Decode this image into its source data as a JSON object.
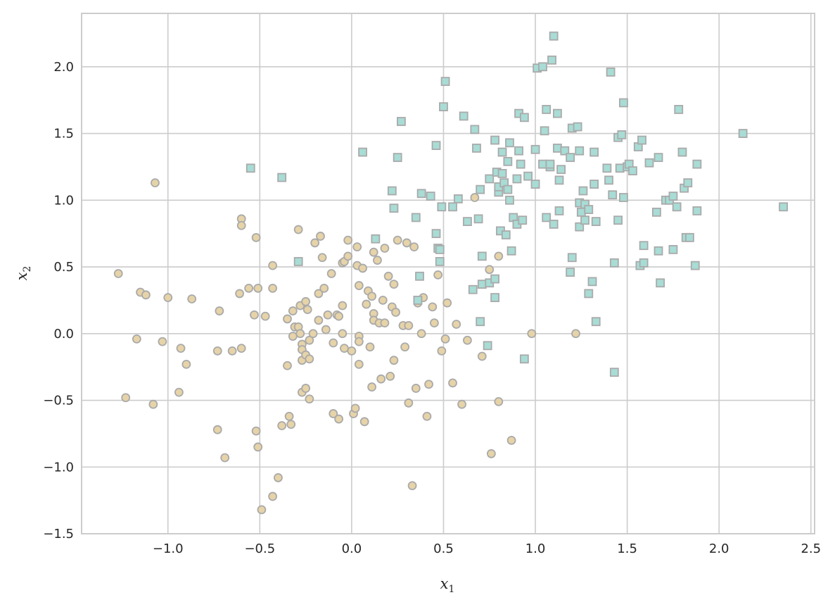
{
  "chart_data": {
    "type": "scatter",
    "title": "",
    "xlabel": "x_1",
    "ylabel": "x_2",
    "xlim": [
      -1.47,
      2.52
    ],
    "ylim": [
      -1.5,
      2.4
    ],
    "xticks": [
      -1.0,
      -0.5,
      0.0,
      0.5,
      1.0,
      1.5,
      2.0,
      2.5
    ],
    "yticks": [
      -1.5,
      -1.0,
      -0.5,
      0.0,
      0.5,
      1.0,
      1.5,
      2.0
    ],
    "xtick_labels": [
      "−1.0",
      "−0.5",
      "0.0",
      "0.5",
      "1.0",
      "1.5",
      "2.0",
      "2.5"
    ],
    "ytick_labels": [
      "−1.5",
      "−1.0",
      "−0.5",
      "0.0",
      "0.5",
      "1.0",
      "1.5",
      "2.0"
    ],
    "grid": true,
    "style": {
      "background": "#ffffff",
      "grid_color": "#cccccc",
      "spine_color": "#cccccc"
    },
    "series": [
      {
        "marker": "circle",
        "color": "#e6d3a8",
        "edge_color": "#aaaaaa",
        "points": [
          [
            -1.27,
            0.45
          ],
          [
            -1.23,
            -0.48
          ],
          [
            -1.17,
            -0.04
          ],
          [
            -1.15,
            0.31
          ],
          [
            -1.12,
            0.29
          ],
          [
            -1.08,
            -0.53
          ],
          [
            -1.07,
            1.13
          ],
          [
            -1.03,
            -0.06
          ],
          [
            -1.0,
            0.27
          ],
          [
            -0.94,
            -0.44
          ],
          [
            -0.93,
            -0.11
          ],
          [
            -0.9,
            -0.23
          ],
          [
            -0.87,
            0.26
          ],
          [
            -0.73,
            -0.72
          ],
          [
            -0.73,
            -0.13
          ],
          [
            -0.72,
            0.17
          ],
          [
            -0.69,
            -0.93
          ],
          [
            -0.65,
            -0.13
          ],
          [
            -0.6,
            0.86
          ],
          [
            -0.6,
            0.81
          ],
          [
            -0.61,
            0.3
          ],
          [
            -0.6,
            -0.11
          ],
          [
            -0.56,
            0.34
          ],
          [
            -0.53,
            0.14
          ],
          [
            -0.52,
            0.72
          ],
          [
            -0.51,
            0.34
          ],
          [
            -0.52,
            -0.73
          ],
          [
            -0.51,
            -0.85
          ],
          [
            -0.47,
            0.13
          ],
          [
            -0.49,
            -1.32
          ],
          [
            -0.43,
            0.51
          ],
          [
            -0.43,
            0.34
          ],
          [
            -0.43,
            -1.22
          ],
          [
            -0.4,
            -1.08
          ],
          [
            -0.38,
            -0.69
          ],
          [
            -0.35,
            0.11
          ],
          [
            -0.35,
            -0.24
          ],
          [
            -0.34,
            -0.62
          ],
          [
            -0.33,
            -0.68
          ],
          [
            -0.32,
            0.17
          ],
          [
            -0.32,
            -0.02
          ],
          [
            -0.31,
            0.05
          ],
          [
            -0.29,
            0.78
          ],
          [
            -0.29,
            0.05
          ],
          [
            -0.28,
            0.21
          ],
          [
            -0.28,
            0.0
          ],
          [
            -0.27,
            -0.08
          ],
          [
            -0.27,
            -0.12
          ],
          [
            -0.27,
            -0.2
          ],
          [
            -0.27,
            -0.44
          ],
          [
            -0.25,
            0.24
          ],
          [
            -0.25,
            -0.16
          ],
          [
            -0.25,
            -0.41
          ],
          [
            -0.24,
            0.18
          ],
          [
            -0.23,
            -0.05
          ],
          [
            -0.23,
            -0.19
          ],
          [
            -0.23,
            -0.49
          ],
          [
            -0.21,
            0.0
          ],
          [
            -0.2,
            0.68
          ],
          [
            -0.17,
            0.73
          ],
          [
            -0.18,
            0.3
          ],
          [
            -0.18,
            0.1
          ],
          [
            -0.16,
            0.57
          ],
          [
            -0.15,
            0.34
          ],
          [
            -0.14,
            0.03
          ],
          [
            -0.13,
            0.14
          ],
          [
            -0.11,
            0.45
          ],
          [
            -0.1,
            -0.07
          ],
          [
            -0.1,
            -0.6
          ],
          [
            -0.08,
            0.14
          ],
          [
            -0.07,
            0.13
          ],
          [
            -0.07,
            -0.64
          ],
          [
            -0.05,
            0.53
          ],
          [
            -0.04,
            0.54
          ],
          [
            -0.05,
            0.21
          ],
          [
            -0.05,
            0.0
          ],
          [
            -0.04,
            -0.11
          ],
          [
            -0.02,
            0.58
          ],
          [
            -0.02,
            0.7
          ],
          [
            0.0,
            -0.13
          ],
          [
            0.01,
            -0.6
          ],
          [
            0.02,
            -0.56
          ],
          [
            0.03,
            0.65
          ],
          [
            0.03,
            0.51
          ],
          [
            0.04,
            0.36
          ],
          [
            0.04,
            -0.02
          ],
          [
            0.04,
            -0.06
          ],
          [
            0.04,
            -0.23
          ],
          [
            0.06,
            0.49
          ],
          [
            0.07,
            -0.66
          ],
          [
            0.08,
            0.22
          ],
          [
            0.09,
            0.32
          ],
          [
            0.1,
            -0.1
          ],
          [
            0.11,
            0.28
          ],
          [
            0.11,
            -0.4
          ],
          [
            0.12,
            0.61
          ],
          [
            0.12,
            0.15
          ],
          [
            0.12,
            0.1
          ],
          [
            0.14,
            0.55
          ],
          [
            0.15,
            0.08
          ],
          [
            0.16,
            -0.34
          ],
          [
            0.17,
            0.25
          ],
          [
            0.18,
            0.08
          ],
          [
            0.18,
            0.64
          ],
          [
            0.2,
            0.43
          ],
          [
            0.21,
            -0.32
          ],
          [
            0.22,
            0.2
          ],
          [
            0.23,
            0.37
          ],
          [
            0.23,
            -0.2
          ],
          [
            0.24,
            0.16
          ],
          [
            0.25,
            0.7
          ],
          [
            0.28,
            0.06
          ],
          [
            0.29,
            -0.1
          ],
          [
            0.3,
            0.68
          ],
          [
            0.31,
            0.06
          ],
          [
            0.31,
            -0.52
          ],
          [
            0.33,
            -1.14
          ],
          [
            0.34,
            0.65
          ],
          [
            0.35,
            -0.41
          ],
          [
            0.36,
            0.23
          ],
          [
            0.38,
            0.0
          ],
          [
            0.39,
            0.27
          ],
          [
            0.41,
            -0.62
          ],
          [
            0.42,
            -0.38
          ],
          [
            0.44,
            0.2
          ],
          [
            0.45,
            0.08
          ],
          [
            0.47,
            0.44
          ],
          [
            0.49,
            -0.13
          ],
          [
            0.51,
            -0.04
          ],
          [
            0.52,
            0.23
          ],
          [
            0.55,
            -0.37
          ],
          [
            0.57,
            0.07
          ],
          [
            0.6,
            -0.53
          ],
          [
            0.63,
            -0.05
          ],
          [
            0.67,
            1.02
          ],
          [
            0.71,
            -0.17
          ],
          [
            0.75,
            0.48
          ],
          [
            0.76,
            -0.9
          ],
          [
            0.8,
            -0.51
          ],
          [
            0.8,
            0.58
          ],
          [
            0.87,
            -0.8
          ],
          [
            0.98,
            0.0
          ],
          [
            1.22,
            0.0
          ]
        ]
      },
      {
        "marker": "square",
        "color": "#a8dcd5",
        "edge_color": "#aaaaaa",
        "points": [
          [
            -0.55,
            1.24
          ],
          [
            -0.38,
            1.17
          ],
          [
            -0.29,
            0.54
          ],
          [
            0.06,
            1.36
          ],
          [
            0.13,
            0.71
          ],
          [
            0.22,
            1.07
          ],
          [
            0.23,
            0.94
          ],
          [
            0.25,
            1.32
          ],
          [
            0.27,
            1.59
          ],
          [
            0.35,
            0.87
          ],
          [
            0.36,
            0.25
          ],
          [
            0.37,
            0.43
          ],
          [
            0.38,
            1.05
          ],
          [
            0.43,
            1.03
          ],
          [
            0.46,
            0.75
          ],
          [
            0.46,
            1.41
          ],
          [
            0.47,
            0.64
          ],
          [
            0.48,
            0.54
          ],
          [
            0.48,
            0.63
          ],
          [
            0.49,
            0.95
          ],
          [
            0.5,
            1.7
          ],
          [
            0.51,
            1.89
          ],
          [
            0.55,
            0.95
          ],
          [
            0.58,
            1.01
          ],
          [
            0.61,
            1.63
          ],
          [
            0.63,
            0.84
          ],
          [
            0.66,
            0.33
          ],
          [
            0.67,
            1.53
          ],
          [
            0.68,
            1.39
          ],
          [
            0.69,
            0.86
          ],
          [
            0.7,
            1.08
          ],
          [
            0.7,
            0.09
          ],
          [
            0.71,
            0.58
          ],
          [
            0.71,
            0.37
          ],
          [
            0.74,
            -0.09
          ],
          [
            0.75,
            1.16
          ],
          [
            0.75,
            0.38
          ],
          [
            0.78,
            1.45
          ],
          [
            0.78,
            0.41
          ],
          [
            0.78,
            0.27
          ],
          [
            0.79,
            1.21
          ],
          [
            0.8,
            1.06
          ],
          [
            0.8,
            1.1
          ],
          [
            0.81,
            0.77
          ],
          [
            0.82,
            1.36
          ],
          [
            0.82,
            1.2
          ],
          [
            0.83,
            1.13
          ],
          [
            0.84,
            0.74
          ],
          [
            0.85,
            1.29
          ],
          [
            0.85,
            1.08
          ],
          [
            0.86,
            1.43
          ],
          [
            0.86,
            1.0
          ],
          [
            0.87,
            0.62
          ],
          [
            0.88,
            0.87
          ],
          [
            0.9,
            0.82
          ],
          [
            0.9,
            1.16
          ],
          [
            0.91,
            1.65
          ],
          [
            0.91,
            1.37
          ],
          [
            0.92,
            1.27
          ],
          [
            0.93,
            0.85
          ],
          [
            0.94,
            1.62
          ],
          [
            0.94,
            -0.19
          ],
          [
            0.96,
            1.18
          ],
          [
            1.0,
            1.38
          ],
          [
            1.0,
            1.12
          ],
          [
            1.01,
            1.99
          ],
          [
            1.04,
            1.27
          ],
          [
            1.04,
            2.0
          ],
          [
            1.05,
            1.52
          ],
          [
            1.06,
            0.87
          ],
          [
            1.06,
            1.68
          ],
          [
            1.08,
            1.25
          ],
          [
            1.08,
            1.27
          ],
          [
            1.09,
            2.05
          ],
          [
            1.1,
            2.23
          ],
          [
            1.1,
            0.82
          ],
          [
            1.12,
            1.39
          ],
          [
            1.12,
            1.65
          ],
          [
            1.13,
            1.15
          ],
          [
            1.13,
            0.92
          ],
          [
            1.14,
            1.23
          ],
          [
            1.16,
            1.37
          ],
          [
            1.19,
            1.32
          ],
          [
            1.19,
            0.46
          ],
          [
            1.2,
            1.54
          ],
          [
            1.2,
            0.57
          ],
          [
            1.23,
            1.55
          ],
          [
            1.24,
            1.37
          ],
          [
            1.24,
            0.98
          ],
          [
            1.24,
            0.8
          ],
          [
            1.25,
            0.91
          ],
          [
            1.26,
            1.07
          ],
          [
            1.27,
            0.97
          ],
          [
            1.27,
            0.85
          ],
          [
            1.29,
            0.93
          ],
          [
            1.29,
            0.3
          ],
          [
            1.31,
            0.39
          ],
          [
            1.32,
            1.12
          ],
          [
            1.32,
            1.36
          ],
          [
            1.33,
            0.84
          ],
          [
            1.33,
            0.09
          ],
          [
            1.39,
            1.24
          ],
          [
            1.4,
            1.15
          ],
          [
            1.41,
            1.96
          ],
          [
            1.42,
            1.04
          ],
          [
            1.43,
            -0.29
          ],
          [
            1.43,
            0.53
          ],
          [
            1.45,
            1.47
          ],
          [
            1.45,
            0.85
          ],
          [
            1.46,
            1.24
          ],
          [
            1.47,
            1.49
          ],
          [
            1.48,
            1.73
          ],
          [
            1.48,
            1.02
          ],
          [
            1.5,
            1.25
          ],
          [
            1.51,
            1.27
          ],
          [
            1.53,
            1.22
          ],
          [
            1.56,
            1.4
          ],
          [
            1.57,
            0.51
          ],
          [
            1.58,
            1.45
          ],
          [
            1.59,
            0.66
          ],
          [
            1.59,
            0.53
          ],
          [
            1.62,
            1.28
          ],
          [
            1.66,
            0.91
          ],
          [
            1.67,
            0.62
          ],
          [
            1.67,
            1.32
          ],
          [
            1.68,
            0.38
          ],
          [
            1.71,
            1.0
          ],
          [
            1.73,
            1.0
          ],
          [
            1.75,
            1.03
          ],
          [
            1.75,
            0.63
          ],
          [
            1.77,
            0.95
          ],
          [
            1.78,
            1.68
          ],
          [
            1.8,
            1.36
          ],
          [
            1.81,
            1.09
          ],
          [
            1.82,
            0.72
          ],
          [
            1.83,
            1.13
          ],
          [
            1.84,
            0.72
          ],
          [
            1.87,
            0.51
          ],
          [
            1.88,
            1.27
          ],
          [
            1.88,
            0.92
          ],
          [
            2.13,
            1.5
          ],
          [
            2.35,
            0.95
          ]
        ]
      }
    ]
  }
}
